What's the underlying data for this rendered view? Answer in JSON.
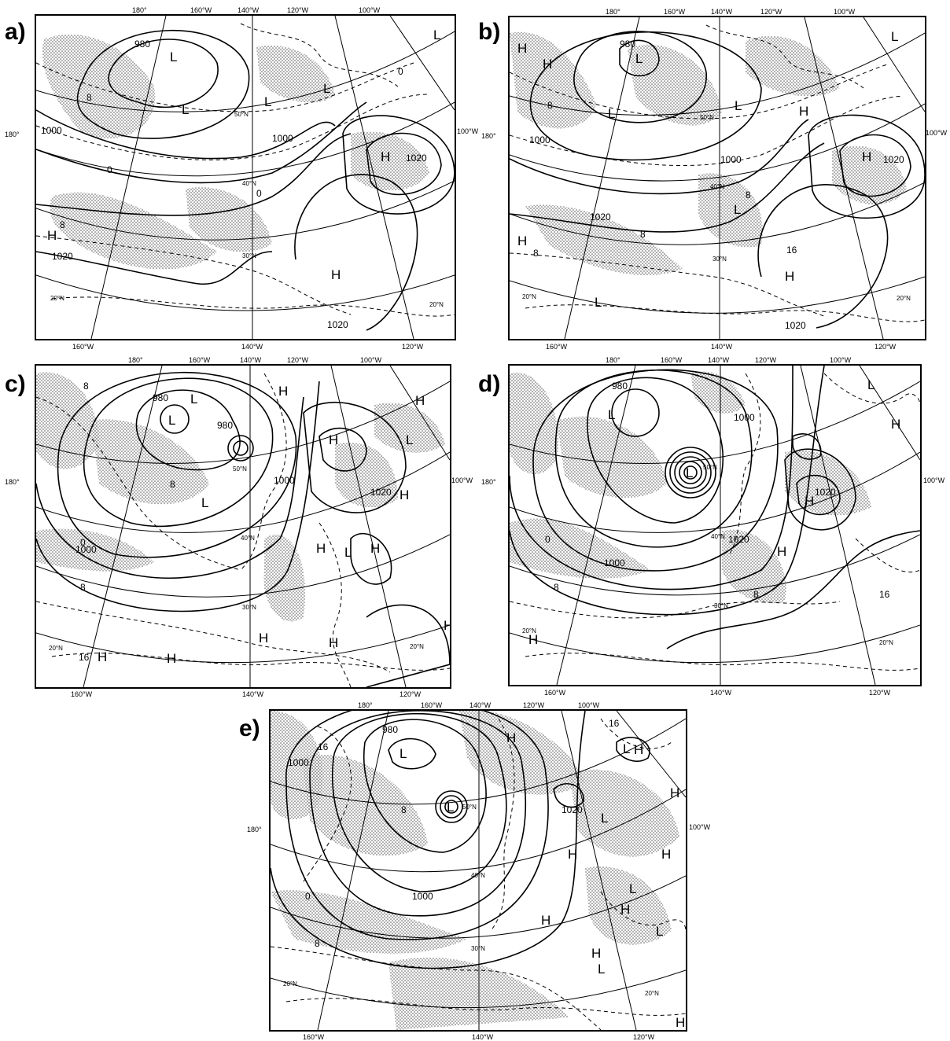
{
  "figure": {
    "panels": [
      {
        "id": "a",
        "letter": "a)",
        "top_ticks": [
          "180°",
          "160°W",
          "140°W",
          "120°W",
          "100°W"
        ],
        "bottom_ticks": [
          "160°W",
          "140°W",
          "120°W"
        ],
        "left_tick": "180°",
        "right_tick": "100°W",
        "lat_labels": [
          "50°N",
          "40°N",
          "30°N",
          "20°N",
          "20°N"
        ],
        "isobar_labels": [
          "980",
          "1000",
          "1000",
          "1020",
          "1020",
          "1020"
        ],
        "temp_labels": [
          "8",
          "0",
          "0",
          "0",
          "8"
        ],
        "highs": [
          "H",
          "H",
          "H"
        ],
        "lows": [
          "L",
          "L",
          "L",
          "L",
          "L"
        ]
      },
      {
        "id": "b",
        "letter": "b)",
        "top_ticks": [
          "180°",
          "160°W",
          "140°W",
          "120°W",
          "100°W"
        ],
        "bottom_ticks": [
          "160°W",
          "140°W",
          "120°W"
        ],
        "left_tick": "180°",
        "right_tick": "100°W",
        "lat_labels": [
          "50°N",
          "40°N",
          "30°N",
          "20°N",
          "20°N"
        ],
        "isobar_labels": [
          "980",
          "1000",
          "1000",
          "1020",
          "1020",
          "1020"
        ],
        "temp_labels": [
          "8",
          "8",
          "8",
          "8",
          "16"
        ],
        "highs": [
          "H",
          "H",
          "H",
          "H",
          "H",
          "H"
        ],
        "lows": [
          "L",
          "L",
          "L",
          "L",
          "L",
          "L"
        ]
      },
      {
        "id": "c",
        "letter": "c)",
        "top_ticks": [
          "180°",
          "160°W",
          "140°W",
          "120°W",
          "100°W"
        ],
        "bottom_ticks": [
          "160°W",
          "140°W",
          "120°W"
        ],
        "left_tick": "180°",
        "right_tick": "100°W",
        "lat_labels": [
          "50°N",
          "40°N",
          "30°N",
          "20°N",
          "20°N"
        ],
        "isobar_labels": [
          "980",
          "980",
          "1000",
          "1000",
          "1020"
        ],
        "temp_labels": [
          "8",
          "8",
          "0",
          "8",
          "16"
        ],
        "highs": [
          "H",
          "H",
          "H",
          "H",
          "H",
          "H",
          "H",
          "H",
          "H"
        ],
        "lows": [
          "L",
          "L",
          "L",
          "L",
          "L"
        ]
      },
      {
        "id": "d",
        "letter": "d)",
        "top_ticks": [
          "180°",
          "160°W",
          "140°W",
          "120°W",
          "100°W"
        ],
        "bottom_ticks": [
          "160°W",
          "140°W",
          "120°W"
        ],
        "left_tick": "180°",
        "right_tick": "100°W",
        "lat_labels": [
          "50°N",
          "40°N",
          "30°N",
          "20°N",
          "20°N"
        ],
        "isobar_labels": [
          "980",
          "1000",
          "1000",
          "1020",
          "1020"
        ],
        "temp_labels": [
          "0",
          "8",
          "8",
          "16"
        ],
        "highs": [
          "H",
          "H",
          "H",
          "H"
        ],
        "lows": [
          "L",
          "L",
          "L"
        ]
      },
      {
        "id": "e",
        "letter": "e)",
        "top_ticks": [
          "180°",
          "160°W",
          "140°W",
          "120°W",
          "100°W"
        ],
        "bottom_ticks": [
          "160°W",
          "140°W",
          "120°W"
        ],
        "left_tick": "180°",
        "right_tick": "100°W",
        "lat_labels": [
          "50°N",
          "40°N",
          "30°N",
          "20°N",
          "20°N"
        ],
        "isobar_labels": [
          "980",
          "1000",
          "1000",
          "1020"
        ],
        "temp_labels": [
          "16",
          "8",
          "0",
          "8",
          "16"
        ],
        "highs": [
          "H",
          "H",
          "H",
          "H",
          "H",
          "H",
          "H",
          "H",
          "H"
        ],
        "lows": [
          "L",
          "L",
          "L",
          "L",
          "L",
          "L",
          "L"
        ]
      }
    ]
  },
  "style": {
    "ink": "#000000",
    "stipple": "#555555",
    "paper": "#ffffff"
  }
}
